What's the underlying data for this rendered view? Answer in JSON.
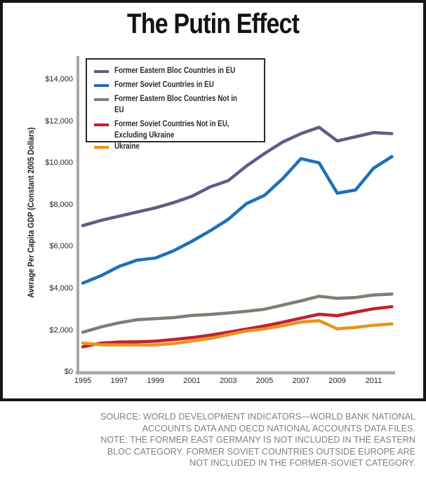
{
  "title": "The Putin Effect",
  "chart_data": {
    "type": "line",
    "title": "The Putin Effect",
    "ylabel": "Average Per Capita GDP (Constant 2005 Dollars)",
    "xlabel": "",
    "grid": false,
    "legend_position": "top-left-inside",
    "axis_color": "#a6a8ab",
    "ylim": [
      0,
      15000
    ],
    "y_ticks": [
      0,
      2000,
      4000,
      6000,
      8000,
      10000,
      12000,
      14000
    ],
    "y_tick_labels": [
      "$0",
      "$2,000",
      "$4,000",
      "$6,000",
      "$8,000",
      "$10,000",
      "$12,000",
      "$14,000"
    ],
    "x_ticks": [
      1995,
      1997,
      1999,
      2001,
      2003,
      2005,
      2007,
      2009,
      2011
    ],
    "x_tick_labels": [
      "1995",
      "1997",
      "1999",
      "2001",
      "2003",
      "2005",
      "2007",
      "2009",
      "2011"
    ],
    "x": [
      1995,
      1996,
      1997,
      1998,
      1999,
      2000,
      2001,
      2002,
      2003,
      2004,
      2005,
      2006,
      2007,
      2008,
      2009,
      2010,
      2011,
      2012
    ],
    "series": [
      {
        "name": "Former Eastern Bloc Countries in EU",
        "color": "#685884",
        "values": [
          7000,
          7250,
          7450,
          7650,
          7850,
          8100,
          8400,
          8850,
          9150,
          9850,
          10450,
          11000,
          11400,
          11700,
          11050,
          11250,
          11450,
          11400
        ]
      },
      {
        "name": "Former Soviet Countries in EU",
        "color": "#1d70b8",
        "values": [
          4250,
          4600,
          5050,
          5350,
          5450,
          5800,
          6250,
          6750,
          7300,
          8050,
          8450,
          9250,
          10200,
          10000,
          8550,
          8700,
          9750,
          10300
        ]
      },
      {
        "name": "Former Eastern Bloc Countries Not in EU",
        "color": "#798272",
        "values": [
          1900,
          2150,
          2350,
          2500,
          2550,
          2600,
          2700,
          2750,
          2820,
          2900,
          3000,
          3200,
          3400,
          3620,
          3520,
          3560,
          3680,
          3720
        ]
      },
      {
        "name": "Former Soviet Countries Not in EU,\nExcluding Ukraine",
        "color": "#c2212f",
        "values": [
          1200,
          1380,
          1430,
          1440,
          1470,
          1550,
          1640,
          1760,
          1900,
          2050,
          2200,
          2380,
          2570,
          2760,
          2690,
          2860,
          3020,
          3120
        ]
      },
      {
        "name": "Ukraine",
        "color": "#e8941d",
        "values": [
          1380,
          1300,
          1290,
          1290,
          1300,
          1360,
          1480,
          1600,
          1780,
          1960,
          2060,
          2210,
          2390,
          2450,
          2060,
          2130,
          2230,
          2300
        ]
      }
    ]
  },
  "caption": {
    "lines": [
      "SOURCE: WORLD DEVELOPMENT INDICATORS—WORLD BANK NATIONAL",
      "ACCOUNTS DATA AND OECD NATIONAL ACCOUNTS DATA FILES.",
      "NOTE: THE FORMER EAST GERMANY IS NOT INCLUDED IN THE EASTERN",
      "BLOC CATEGORY. FORMER SOVIET COUNTRIES OUTSIDE EUROPE ARE",
      "NOT INCLUDED IN THE FORMER-SOVIET CATEGORY."
    ]
  }
}
